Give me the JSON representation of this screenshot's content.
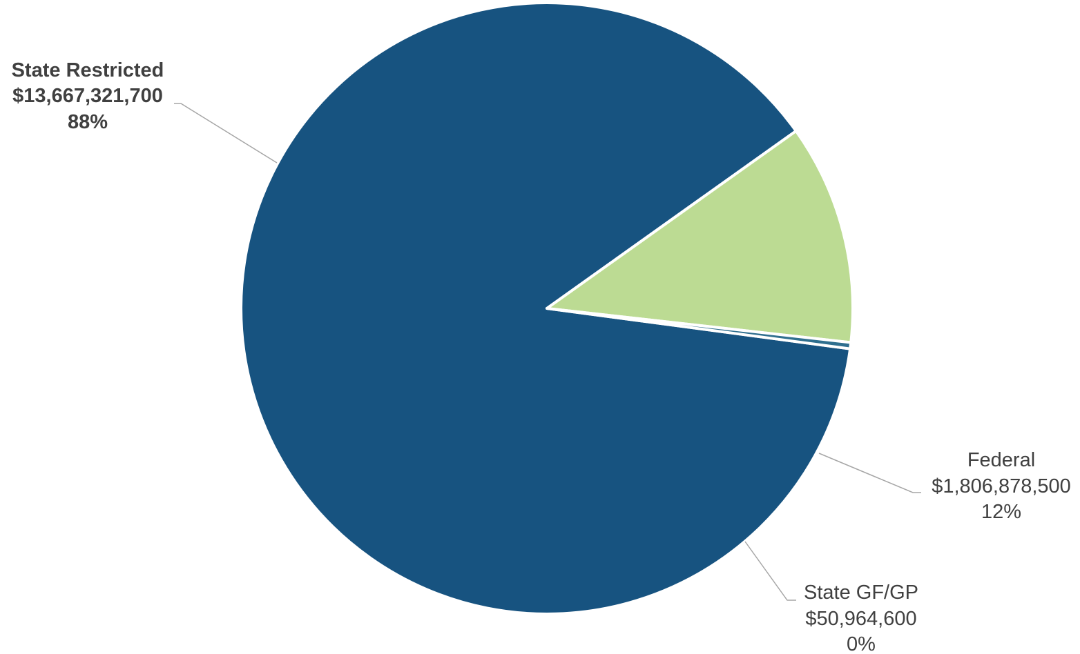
{
  "chart_data": {
    "type": "pie",
    "title": "",
    "colors": [
      "#175380",
      "#bcdb93",
      "#2f6f8f"
    ],
    "slices": [
      {
        "name": "State Restricted",
        "value": 13667321700,
        "value_label": "$13,667,321,700",
        "percent_label": "88%",
        "bold": true
      },
      {
        "name": "Federal",
        "value": 1806878500,
        "value_label": "$1,806,878,500",
        "percent_label": "12%",
        "bold": false
      },
      {
        "name": "State GF/GP",
        "value": 50964600,
        "value_label": "$50,964,600",
        "percent_label": "0%",
        "bold": false
      }
    ]
  }
}
